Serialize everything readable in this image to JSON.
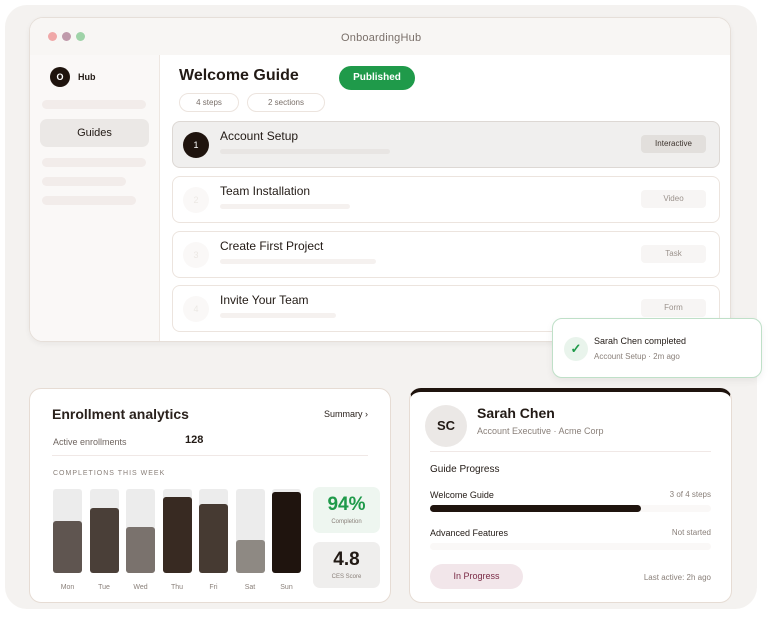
{
  "window": {
    "title": "OnboardingHub",
    "dots": [
      "#f0a8a8",
      "#c09aab",
      "#9fd3a8"
    ]
  },
  "sidebar": {
    "logo_letter": "O",
    "brand": "Hub",
    "items": [
      {
        "label": "Guides",
        "active": true
      }
    ]
  },
  "guide": {
    "title": "Welcome Guide",
    "status": "Published",
    "chips": [
      "4 steps",
      "2 sections"
    ],
    "steps": [
      {
        "number": "1",
        "title": "Account Setup",
        "type": "Interactive",
        "active": true
      },
      {
        "number": "2",
        "title": "Team Installation",
        "type": "Video"
      },
      {
        "number": "3",
        "title": "Create First Project",
        "type": "Task"
      },
      {
        "number": "4",
        "title": "Invite Your Team",
        "type": "Form"
      }
    ]
  },
  "toast": {
    "icon": "check-icon",
    "title": "Sarah Chen completed",
    "subtitle": "Account Setup · 2m ago"
  },
  "analytics": {
    "title": "Enrollment analytics",
    "summary_link": "Summary ›",
    "active_label": "Active enrollments",
    "active_value": "128",
    "section_label": "COMPLETIONS THIS WEEK",
    "completion_value": "94%",
    "completion_label": "Completion",
    "ces_value": "4.8",
    "ces_label": "CES Score"
  },
  "chart_data": {
    "type": "bar",
    "categories": [
      "Mon",
      "Tue",
      "Wed",
      "Thu",
      "Fri",
      "Sat",
      "Sun"
    ],
    "values": [
      62,
      77,
      55,
      90,
      82,
      39,
      96
    ],
    "ylim": [
      0,
      100
    ],
    "colors": [
      "#5f5550",
      "#4a3f38",
      "#7a726d",
      "#382a22",
      "#463a32",
      "#8e8983",
      "#1f140e"
    ]
  },
  "profile": {
    "initials": "SC",
    "name": "Sarah Chen",
    "role": "Account Executive · Acme Corp",
    "section": "Guide Progress",
    "guides": [
      {
        "name": "Welcome Guide",
        "status": "3 of 4 steps",
        "progress": 0.75
      },
      {
        "name": "Advanced Features",
        "status": "Not started",
        "progress": 0
      }
    ],
    "badge": "In Progress",
    "last_active": "Last active: 2h ago"
  }
}
